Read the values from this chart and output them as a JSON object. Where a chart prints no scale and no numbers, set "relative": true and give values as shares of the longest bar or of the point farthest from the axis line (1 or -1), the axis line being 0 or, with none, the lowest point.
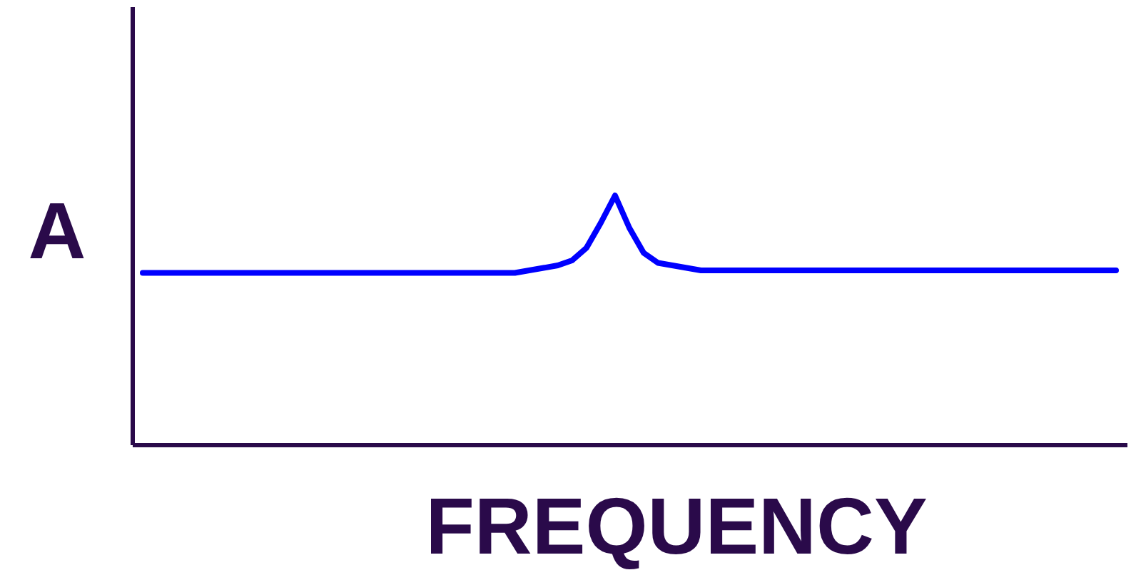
{
  "chart_data": {
    "type": "line",
    "relative": true,
    "xlabel": "FREQUENCY",
    "ylabel": "A",
    "categories": [
      null,
      null,
      null,
      null,
      null,
      null,
      null,
      null,
      null,
      null,
      null,
      null,
      null,
      null,
      null,
      null,
      null,
      null,
      null,
      null,
      null,
      null,
      null,
      null,
      null,
      null,
      null,
      null,
      null,
      null,
      null,
      null,
      null,
      null,
      null,
      null,
      null,
      null,
      null,
      null,
      null,
      null,
      null,
      null,
      null,
      null,
      null,
      null,
      null,
      null,
      null,
      null,
      null,
      null,
      null,
      null,
      null,
      null,
      null,
      null,
      null,
      null,
      null,
      null,
      null,
      null,
      null,
      null,
      null
    ],
    "series": [
      {
        "color": "#0000ff",
        "values": [
          0.69,
          0.69,
          0.69,
          0.69,
          0.69,
          0.69,
          0.69,
          0.69,
          0.69,
          0.69,
          0.69,
          0.69,
          0.69,
          0.69,
          0.69,
          0.69,
          0.69,
          0.69,
          0.69,
          0.69,
          0.69,
          0.69,
          0.69,
          0.69,
          0.69,
          0.69,
          0.69,
          0.7,
          0.71,
          0.72,
          0.74,
          0.79,
          0.89,
          1,
          0.87,
          0.77,
          0.73,
          0.72,
          0.71,
          0.7,
          0.7,
          0.7,
          0.7,
          0.7,
          0.7,
          0.7,
          0.7,
          0.7,
          0.7,
          0.7,
          0.7,
          0.7,
          0.7,
          0.7,
          0.7,
          0.7,
          0.7,
          0.7,
          0.7,
          0.7,
          0.7,
          0.7,
          0.7,
          0.7,
          0.7,
          0.7,
          0.7,
          0.7,
          0.7
        ]
      }
    ],
    "marker": "none",
    "line_style": "solid"
  }
}
